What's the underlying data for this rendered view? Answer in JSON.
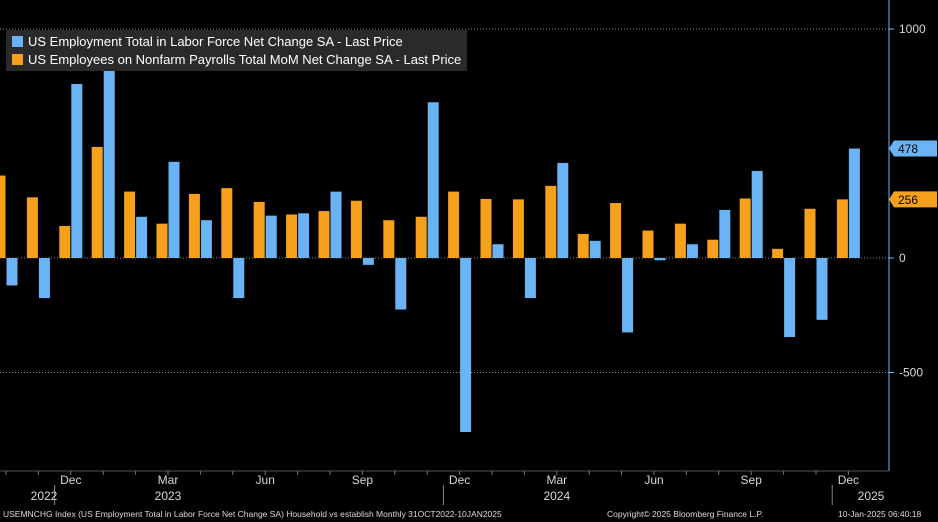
{
  "chart_data": {
    "type": "bar",
    "categories": [
      "Oct 2022",
      "Nov 2022",
      "Dec 2022",
      "Jan 2023",
      "Feb 2023",
      "Mar 2023",
      "Apr 2023",
      "May 2023",
      "Jun 2023",
      "Jul 2023",
      "Aug 2023",
      "Sep 2023",
      "Oct 2023",
      "Nov 2023",
      "Dec 2023",
      "Jan 2024",
      "Feb 2024",
      "Mar 2024",
      "Apr 2024",
      "May 2024",
      "Jun 2024",
      "Jul 2024",
      "Aug 2024",
      "Sep 2024",
      "Oct 2024",
      "Nov 2024",
      "Dec 2024"
    ],
    "series": [
      {
        "name": "US Employment Total in Labor Force Net Change SA - Last Price",
        "color": "#6ab4f5",
        "values": [
          -120,
          -175,
          760,
          950,
          180,
          420,
          165,
          -175,
          185,
          195,
          290,
          -30,
          -225,
          680,
          -760,
          60,
          -175,
          415,
          75,
          -325,
          -10,
          60,
          210,
          380,
          -345,
          -270,
          478
        ]
      },
      {
        "name": "US Employees on Nonfarm Payrolls Total MoM Net Change SA - Last Price",
        "color": "#f7a01c",
        "values": [
          360,
          265,
          140,
          485,
          290,
          150,
          280,
          305,
          245,
          190,
          205,
          250,
          165,
          180,
          290,
          258,
          256,
          315,
          105,
          240,
          120,
          150,
          80,
          260,
          40,
          215,
          256
        ]
      }
    ],
    "xlabels": [
      {
        "label": "Dec",
        "index": 2
      },
      {
        "label": "Mar",
        "index": 5
      },
      {
        "label": "Jun",
        "index": 8
      },
      {
        "label": "Sep",
        "index": 11
      },
      {
        "label": "Dec",
        "index": 14
      },
      {
        "label": "Mar",
        "index": 17
      },
      {
        "label": "Jun",
        "index": 20
      },
      {
        "label": "Sep",
        "index": 23
      },
      {
        "label": "Dec",
        "index": 26
      }
    ],
    "years": [
      {
        "label": "2022",
        "index": 0
      },
      {
        "label": "2023",
        "index": 5
      },
      {
        "label": "2024",
        "index": 17
      },
      {
        "label": "2025",
        "index": 26
      }
    ],
    "yticks": [
      1000,
      0,
      -500
    ],
    "ylim": [
      -920,
      1130
    ],
    "tags": [
      {
        "value": 478,
        "label": "478",
        "color": "#6ab4f5"
      },
      {
        "value": 256,
        "label": "256",
        "color": "#f7a01c"
      }
    ],
    "legend_position": "top-left",
    "grid": true
  },
  "footer": {
    "left": "USEMNCHG Index (US Employment Total in Labor Force Net Change SA) Household vs establish  Monthly 31OCT2022-10JAN2025",
    "copyright": "Copyright© 2025 Bloomberg Finance L.P.",
    "timestamp": "10-Jan-2025 06:40:18"
  },
  "colors": {
    "background": "#000000",
    "axis": "#6ab4f5",
    "grid": "#8a8a8a",
    "text": "#d8d8d8"
  }
}
